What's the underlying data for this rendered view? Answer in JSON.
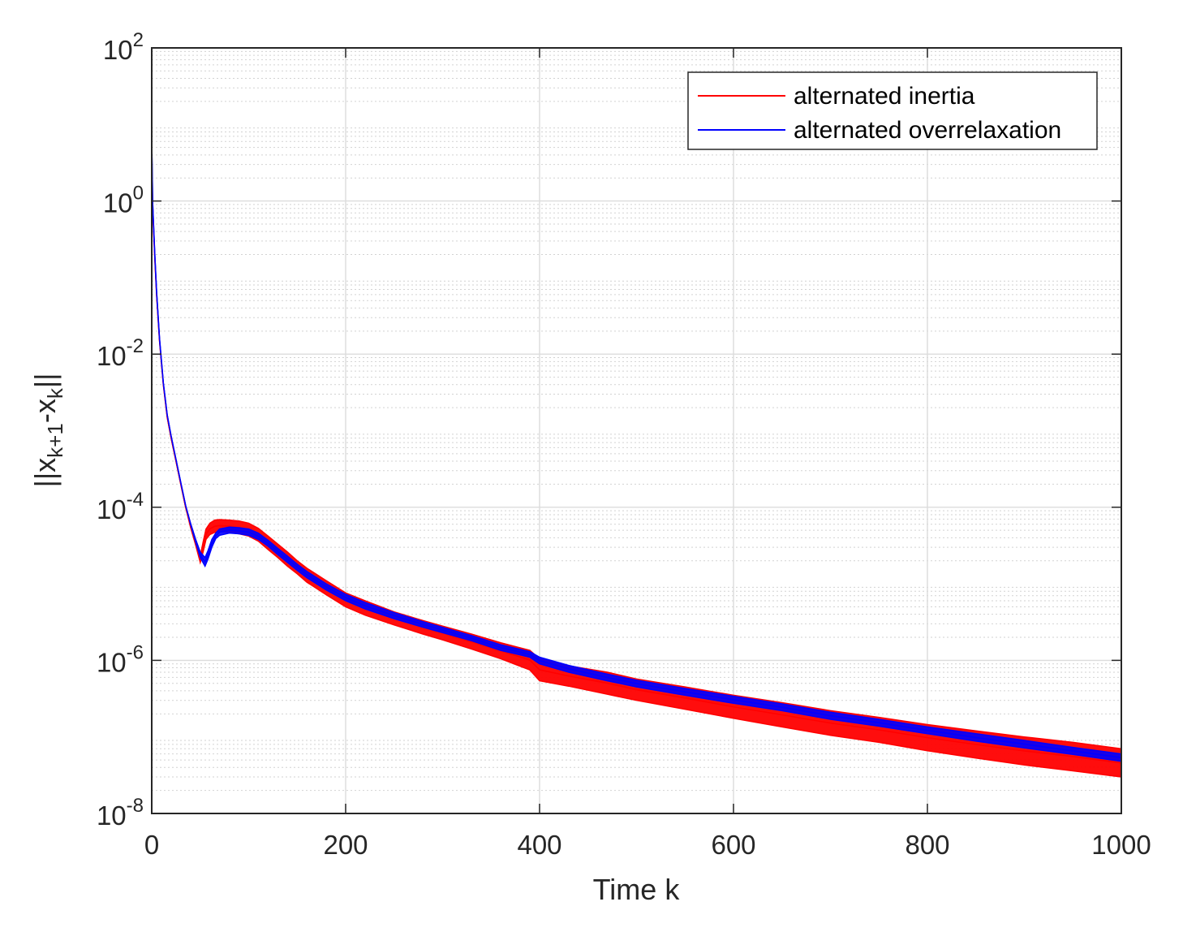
{
  "chart_data": {
    "type": "line",
    "title": "",
    "xlabel": "Time k",
    "ylabel": {
      "prefix": "||x",
      "sub1": "k+1",
      "middle": "-x",
      "sub2": "k",
      "suffix": "||"
    },
    "xlim": [
      0,
      1000
    ],
    "ylim": [
      1e-08,
      100
    ],
    "yscale": "log",
    "grid": true,
    "minor_grid": true,
    "legend_position": "top-right",
    "x_ticks": [
      0,
      200,
      400,
      600,
      800,
      1000
    ],
    "x_tick_labels": [
      "0",
      "200",
      "400",
      "600",
      "800",
      "1000"
    ],
    "y_ticks": [
      {
        "value": 1e-08,
        "base": "10",
        "exp": "-8"
      },
      {
        "value": 1e-06,
        "base": "10",
        "exp": "-6"
      },
      {
        "value": 0.0001,
        "base": "10",
        "exp": "-4"
      },
      {
        "value": 0.01,
        "base": "10",
        "exp": "-2"
      },
      {
        "value": 1,
        "base": "10",
        "exp": "0"
      },
      {
        "value": 100,
        "base": "10",
        "exp": "2"
      }
    ],
    "series": [
      {
        "name": "alternated inertia",
        "color": "#ff0000",
        "x": [
          0,
          1,
          3,
          5,
          8,
          12,
          16,
          20,
          25,
          30,
          35,
          40,
          45,
          50,
          53,
          56,
          60,
          65,
          70,
          80,
          90,
          100,
          110,
          120,
          130,
          140,
          150,
          160,
          180,
          200,
          220,
          250,
          280,
          300,
          330,
          360,
          390,
          400,
          430,
          470,
          500,
          550,
          600,
          650,
          700,
          750,
          800,
          850,
          900,
          950,
          1000
        ],
        "upper": [
          3.0,
          0.8,
          0.2,
          0.06,
          0.015,
          0.004,
          0.0015,
          0.0008,
          0.0004,
          0.0002,
          0.0001,
          6e-05,
          3.8e-05,
          2.3e-05,
          3.5e-05,
          5.2e-05,
          6.2e-05,
          6.8e-05,
          6.9e-05,
          6.8e-05,
          6.6e-05,
          6.2e-05,
          5.3e-05,
          4.2e-05,
          3.3e-05,
          2.6e-05,
          2e-05,
          1.6e-05,
          1.1e-05,
          7.6e-06,
          6e-06,
          4.3e-06,
          3.3e-06,
          2.8e-06,
          2.2e-06,
          1.7e-06,
          1.35e-06,
          1.05e-06,
          8.5e-07,
          7e-07,
          5.7e-07,
          4.5e-07,
          3.5e-07,
          2.8e-07,
          2.2e-07,
          1.8e-07,
          1.45e-07,
          1.2e-07,
          1e-07,
          8.5e-08,
          7e-08
        ],
        "lower": [
          3.0,
          0.8,
          0.2,
          0.06,
          0.015,
          0.004,
          0.0015,
          0.0008,
          0.0004,
          0.0002,
          0.0001,
          5.5e-05,
          3.3e-05,
          1.9e-05,
          2.6e-05,
          3.8e-05,
          4.4e-05,
          4.7e-05,
          4.8e-05,
          4.7e-05,
          4.5e-05,
          4.2e-05,
          3.6e-05,
          2.8e-05,
          2.2e-05,
          1.7e-05,
          1.35e-05,
          1.05e-05,
          7.2e-06,
          5e-06,
          3.9e-06,
          2.9e-06,
          2.2e-06,
          1.85e-06,
          1.4e-06,
          1.05e-06,
          7.5e-07,
          5.4e-07,
          4.6e-07,
          3.6e-07,
          3e-07,
          2.3e-07,
          1.75e-07,
          1.35e-07,
          1.05e-07,
          8.5e-08,
          6.6e-08,
          5.3e-08,
          4.3e-08,
          3.6e-08,
          3e-08
        ]
      },
      {
        "name": "alternated overrelaxation",
        "color": "#0000ff",
        "x": [
          0,
          1,
          3,
          5,
          8,
          12,
          16,
          20,
          25,
          30,
          35,
          40,
          45,
          50,
          55,
          58,
          62,
          66,
          70,
          80,
          90,
          100,
          110,
          120,
          130,
          140,
          150,
          160,
          180,
          200,
          220,
          250,
          280,
          300,
          330,
          360,
          390,
          400,
          430,
          470,
          500,
          550,
          600,
          650,
          700,
          750,
          800,
          850,
          900,
          950,
          1000
        ],
        "upper": [
          6.0,
          0.9,
          0.22,
          0.065,
          0.016,
          0.0042,
          0.0016,
          0.00085,
          0.00042,
          0.00021,
          0.000105,
          6.2e-05,
          3.9e-05,
          2.6e-05,
          2.2e-05,
          2.7e-05,
          3.8e-05,
          4.6e-05,
          5.2e-05,
          5.5e-05,
          5.4e-05,
          5.2e-05,
          4.6e-05,
          3.7e-05,
          2.9e-05,
          2.3e-05,
          1.8e-05,
          1.45e-05,
          1e-05,
          7.3e-06,
          5.7e-06,
          4.2e-06,
          3.2e-06,
          2.7e-06,
          2.1e-06,
          1.6e-06,
          1.3e-06,
          1.1e-06,
          8.6e-07,
          6.6e-07,
          5.5e-07,
          4.3e-07,
          3.4e-07,
          2.7e-07,
          2.1e-07,
          1.7e-07,
          1.35e-07,
          1.1e-07,
          9e-08,
          7.3e-08,
          6e-08
        ],
        "lower": [
          6.0,
          0.9,
          0.22,
          0.065,
          0.016,
          0.0042,
          0.0016,
          0.00085,
          0.00042,
          0.00021,
          0.000105,
          6e-05,
          3.6e-05,
          2.2e-05,
          1.7e-05,
          2.1e-05,
          3e-05,
          3.9e-05,
          4.3e-05,
          4.6e-05,
          4.5e-05,
          4.3e-05,
          3.8e-05,
          3.1e-05,
          2.4e-05,
          1.9e-05,
          1.5e-05,
          1.2e-05,
          8.3e-06,
          6e-06,
          4.7e-06,
          3.5e-06,
          2.7e-06,
          2.3e-06,
          1.8e-06,
          1.35e-06,
          1.1e-06,
          9e-07,
          7e-07,
          5.4e-07,
          4.5e-07,
          3.5e-07,
          2.75e-07,
          2.2e-07,
          1.7e-07,
          1.38e-07,
          1.1e-07,
          8.8e-08,
          7.2e-08,
          5.9e-08,
          4.8e-08
        ]
      }
    ]
  }
}
